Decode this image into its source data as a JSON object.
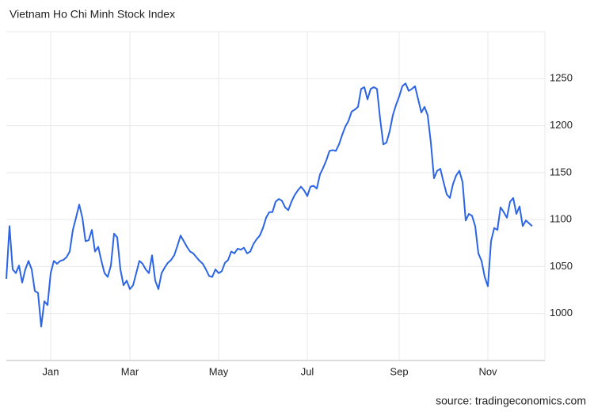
{
  "chart_data": {
    "type": "line",
    "title": "Vietnam Ho Chi Minh Stock Index",
    "source": "source: tradingeconomics.com",
    "color": "#2c64e6",
    "grid": true,
    "ylim": [
      950,
      1300
    ],
    "yticks": [
      1000,
      1050,
      1100,
      1150,
      1200,
      1250
    ],
    "categories": [
      null,
      null,
      null,
      null,
      null,
      null,
      null,
      null,
      null,
      null,
      null,
      null,
      null,
      null,
      "Jan",
      null,
      null,
      null,
      null,
      null,
      null,
      null,
      null,
      null,
      null,
      null,
      null,
      null,
      null,
      null,
      null,
      null,
      null,
      null,
      null,
      null,
      null,
      null,
      null,
      "Mar",
      null,
      null,
      null,
      null,
      null,
      null,
      null,
      null,
      null,
      null,
      null,
      null,
      null,
      null,
      null,
      null,
      null,
      null,
      null,
      null,
      null,
      null,
      null,
      null,
      null,
      null,
      null,
      "May",
      null,
      null,
      null,
      null,
      null,
      null,
      null,
      null,
      null,
      null,
      null,
      null,
      null,
      null,
      null,
      null,
      null,
      null,
      null,
      null,
      null,
      null,
      null,
      null,
      null,
      null,
      null,
      "Jul",
      null,
      null,
      null,
      null,
      null,
      null,
      null,
      null,
      null,
      null,
      null,
      null,
      null,
      null,
      null,
      null,
      null,
      null,
      null,
      null,
      null,
      null,
      null,
      null,
      null,
      null,
      null,
      null,
      "Sep",
      null,
      null,
      null,
      null,
      null,
      null,
      null,
      null,
      null,
      null,
      null,
      null,
      null,
      null,
      null,
      null,
      null,
      null,
      null,
      null,
      null,
      null,
      null,
      null,
      null,
      null,
      null,
      "Nov",
      null,
      null,
      null,
      null,
      null,
      null,
      null,
      null,
      null,
      null,
      null,
      null,
      null,
      null
    ],
    "values": [
      1037,
      1093,
      1047,
      1043,
      1051,
      1033,
      1047,
      1056,
      1047,
      1024,
      1022,
      986,
      1013,
      1009,
      1043,
      1056,
      1053,
      1056,
      1057,
      1060,
      1066,
      1089,
      1102,
      1116,
      1102,
      1077,
      1078,
      1089,
      1066,
      1071,
      1056,
      1043,
      1039,
      1051,
      1085,
      1081,
      1047,
      1030,
      1035,
      1026,
      1030,
      1043,
      1056,
      1053,
      1047,
      1043,
      1062,
      1035,
      1026,
      1043,
      1049,
      1054,
      1057,
      1062,
      1072,
      1083,
      1077,
      1071,
      1066,
      1064,
      1060,
      1056,
      1053,
      1047,
      1040,
      1039,
      1047,
      1043,
      1045,
      1054,
      1057,
      1066,
      1064,
      1069,
      1068,
      1070,
      1064,
      1066,
      1074,
      1079,
      1083,
      1091,
      1102,
      1108,
      1108,
      1119,
      1122,
      1120,
      1113,
      1110,
      1119,
      1126,
      1131,
      1135,
      1131,
      1125,
      1135,
      1136,
      1133,
      1148,
      1155,
      1163,
      1173,
      1174,
      1173,
      1180,
      1190,
      1199,
      1205,
      1215,
      1217,
      1220,
      1239,
      1241,
      1228,
      1239,
      1241,
      1239,
      1207,
      1180,
      1182,
      1194,
      1211,
      1222,
      1231,
      1242,
      1245,
      1237,
      1239,
      1242,
      1228,
      1214,
      1220,
      1211,
      1182,
      1144,
      1152,
      1154,
      1140,
      1127,
      1123,
      1138,
      1147,
      1152,
      1140,
      1099,
      1106,
      1104,
      1093,
      1064,
      1056,
      1039,
      1029,
      1077,
      1091,
      1089,
      1113,
      1108,
      1102,
      1119,
      1123,
      1106,
      1114,
      1093,
      1099,
      1096,
      1093
    ]
  }
}
